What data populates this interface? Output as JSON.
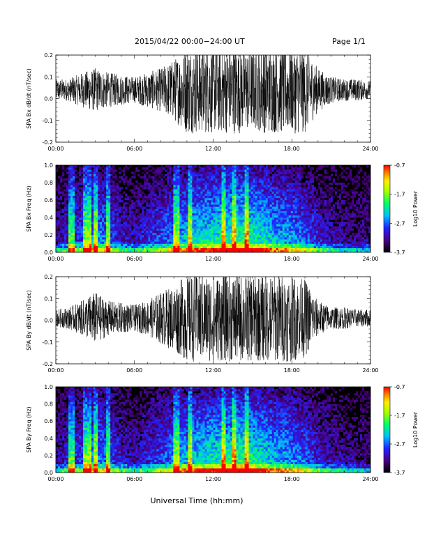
{
  "header": {
    "title": "2015/04/22  00:00−24:00 UT",
    "page": "Page 1/1"
  },
  "xlabel": "Universal Time (hh:mm)",
  "colors": {
    "background": "#ffffff",
    "trace": "#000000",
    "spectrogram_bg": "#000000"
  },
  "chart_data": [
    {
      "type": "line",
      "ylabel": "SPA Bx dB/dt (nT/sec)",
      "xlim": [
        0,
        24
      ],
      "ylim": [
        -0.2,
        0.2
      ],
      "x_ticks": [
        "00:00",
        "06:00",
        "12:00",
        "18:00",
        "24:00"
      ],
      "y_ticks": [
        "-0.2",
        "-0.1",
        "0.0",
        "0.1",
        "0.2"
      ],
      "series": [
        {
          "x_hours": [
            0,
            1,
            2,
            3,
            4,
            5,
            6,
            7,
            8,
            9,
            10,
            11,
            12,
            13,
            14,
            15,
            16,
            17,
            18,
            19,
            20,
            21,
            22,
            23,
            24
          ],
          "center": [
            0.04,
            0.04,
            0.04,
            0.04,
            0.04,
            0.04,
            0.04,
            0.04,
            0.04,
            0.04,
            0.04,
            0.04,
            0.04,
            0.04,
            0.04,
            0.04,
            0.04,
            0.04,
            0.04,
            0.04,
            0.04,
            0.04,
            0.04,
            0.04,
            0.04
          ],
          "envelope": [
            0.05,
            0.05,
            0.08,
            0.1,
            0.08,
            0.07,
            0.06,
            0.08,
            0.1,
            0.14,
            0.2,
            0.2,
            0.2,
            0.2,
            0.2,
            0.18,
            0.2,
            0.2,
            0.2,
            0.2,
            0.1,
            0.06,
            0.05,
            0.05,
            0.04
          ]
        }
      ]
    },
    {
      "type": "heatmap",
      "ylabel": "SPA Bx Freq (Hz)",
      "xlim": [
        0,
        24
      ],
      "ylim": [
        0,
        1
      ],
      "x_ticks": [
        "00:00",
        "06:00",
        "12:00",
        "18:00",
        "24:00"
      ],
      "y_ticks": [
        "0.0",
        "0.2",
        "0.4",
        "0.6",
        "0.8",
        "1.0"
      ],
      "colorbar": {
        "label": "Log10 Power",
        "ticks": [
          "-0.7",
          "-1.7",
          "-2.7",
          "-3.7"
        ],
        "range": [
          -3.7,
          -0.7
        ]
      },
      "activity_by_hour": [
        0.3,
        0.45,
        0.55,
        0.7,
        0.6,
        0.4,
        0.35,
        0.45,
        0.55,
        0.65,
        0.8,
        0.85,
        0.9,
        0.95,
        1.0,
        0.95,
        0.85,
        0.75,
        0.7,
        0.6,
        0.45,
        0.35,
        0.3,
        0.25
      ],
      "bright_hours": [
        1.2,
        2.3,
        2.6,
        3.1,
        4.0,
        9.2,
        10.2,
        12.8,
        13.6,
        14.5
      ]
    },
    {
      "type": "line",
      "ylabel": "SPA By dB/dt (nT/sec)",
      "xlim": [
        0,
        24
      ],
      "ylim": [
        -0.2,
        0.2
      ],
      "x_ticks": [
        "00:00",
        "06:00",
        "12:00",
        "18:00",
        "24:00"
      ],
      "y_ticks": [
        "-0.2",
        "-0.1",
        "0.0",
        "0.1",
        "0.2"
      ],
      "series": [
        {
          "x_hours": [
            0,
            1,
            2,
            3,
            4,
            5,
            6,
            7,
            8,
            9,
            10,
            11,
            12,
            13,
            14,
            15,
            16,
            17,
            18,
            19,
            20,
            21,
            22,
            23,
            24
          ],
          "center": [
            0.01,
            0.01,
            0.01,
            0.01,
            0.01,
            0.01,
            0.01,
            0.01,
            0.01,
            0.01,
            0.01,
            0.01,
            0.01,
            0.01,
            0.01,
            0.01,
            0.01,
            0.01,
            0.01,
            0.01,
            0.01,
            0.01,
            0.01,
            0.01,
            0.01
          ],
          "envelope": [
            0.04,
            0.05,
            0.08,
            0.12,
            0.08,
            0.07,
            0.06,
            0.08,
            0.12,
            0.15,
            0.2,
            0.2,
            0.2,
            0.2,
            0.2,
            0.2,
            0.2,
            0.2,
            0.2,
            0.18,
            0.08,
            0.05,
            0.05,
            0.04,
            0.04
          ]
        }
      ]
    },
    {
      "type": "heatmap",
      "ylabel": "SPA By Freq (Hz)",
      "xlim": [
        0,
        24
      ],
      "ylim": [
        0,
        1
      ],
      "x_ticks": [
        "00:00",
        "06:00",
        "12:00",
        "18:00",
        "24:00"
      ],
      "y_ticks": [
        "0.0",
        "0.2",
        "0.4",
        "0.6",
        "0.8",
        "1.0"
      ],
      "colorbar": {
        "label": "Log10 Power",
        "ticks": [
          "-0.7",
          "-1.7",
          "-2.7",
          "-3.7"
        ],
        "range": [
          -3.7,
          -0.7
        ]
      },
      "activity_by_hour": [
        0.3,
        0.45,
        0.55,
        0.7,
        0.6,
        0.4,
        0.35,
        0.45,
        0.55,
        0.65,
        0.8,
        0.85,
        0.9,
        0.95,
        1.0,
        0.95,
        0.85,
        0.75,
        0.7,
        0.6,
        0.45,
        0.35,
        0.3,
        0.25
      ],
      "bright_hours": [
        1.2,
        2.3,
        2.6,
        3.1,
        4.0,
        9.2,
        10.2,
        12.8,
        13.6,
        14.5
      ]
    }
  ]
}
